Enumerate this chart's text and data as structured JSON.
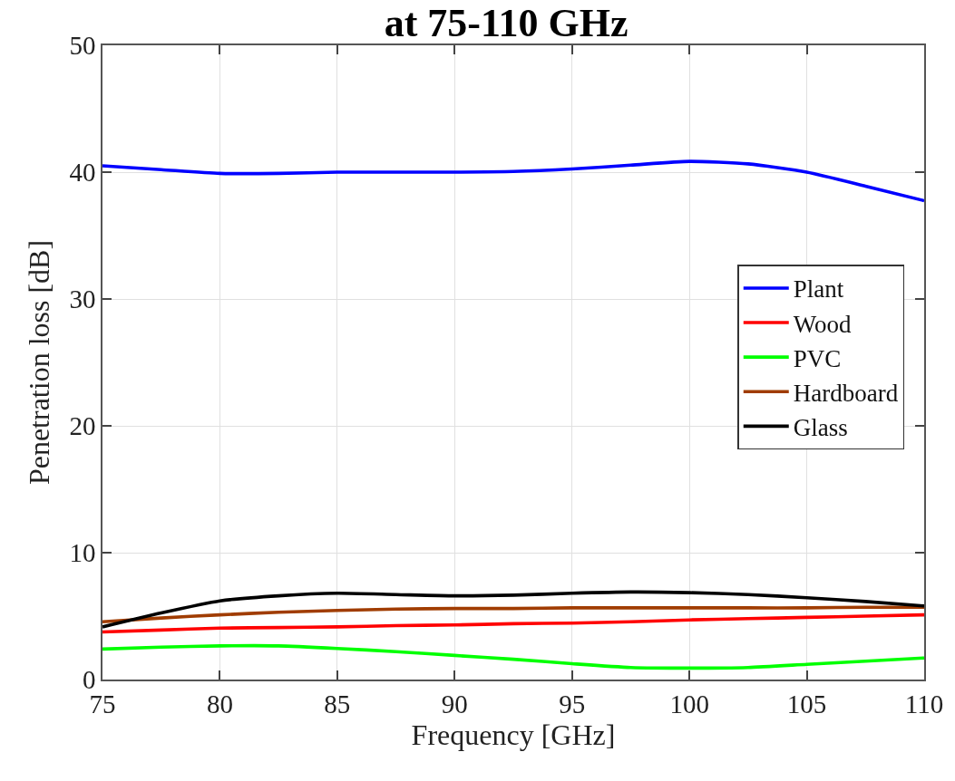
{
  "chart_data": {
    "type": "line",
    "title": "at 75-110 GHz",
    "xlabel": "Frequency [GHz]",
    "ylabel": "Penetration loss [dB]",
    "x": [
      75,
      77.5,
      80,
      82.5,
      85,
      87.5,
      90,
      92.5,
      95,
      97.5,
      100,
      102.5,
      105,
      107.5,
      110
    ],
    "series": [
      {
        "name": "Plant",
        "color": "#0000ff",
        "values": [
          40.5,
          40.2,
          39.9,
          39.9,
          40.0,
          40.0,
          40.0,
          40.05,
          40.25,
          40.55,
          40.85,
          40.65,
          40.0,
          38.9,
          37.75
        ]
      },
      {
        "name": "Wood",
        "color": "#ff0000",
        "values": [
          3.75,
          3.9,
          4.05,
          4.1,
          4.15,
          4.25,
          4.3,
          4.4,
          4.45,
          4.55,
          4.7,
          4.8,
          4.9,
          5.0,
          5.1
        ]
      },
      {
        "name": "PVC",
        "color": "#00ff00",
        "values": [
          2.4,
          2.55,
          2.65,
          2.65,
          2.45,
          2.2,
          1.9,
          1.6,
          1.25,
          0.95,
          0.9,
          0.95,
          1.2,
          1.45,
          1.7
        ]
      },
      {
        "name": "Hardboard",
        "color": "#a03c00",
        "values": [
          4.55,
          4.85,
          5.1,
          5.3,
          5.45,
          5.55,
          5.6,
          5.6,
          5.65,
          5.65,
          5.65,
          5.65,
          5.65,
          5.7,
          5.7
        ]
      },
      {
        "name": "Glass",
        "color": "#000000",
        "values": [
          4.15,
          5.25,
          6.2,
          6.6,
          6.8,
          6.7,
          6.6,
          6.65,
          6.8,
          6.9,
          6.85,
          6.7,
          6.45,
          6.15,
          5.8
        ]
      }
    ],
    "xlim": [
      75,
      110
    ],
    "xticks": [
      75,
      80,
      85,
      90,
      95,
      100,
      105,
      110
    ],
    "ylim": [
      0,
      50
    ],
    "yticks": [
      0,
      10,
      20,
      30,
      40,
      50
    ],
    "grid": true,
    "legend": "right",
    "line_style": "solid",
    "marker": "none"
  }
}
